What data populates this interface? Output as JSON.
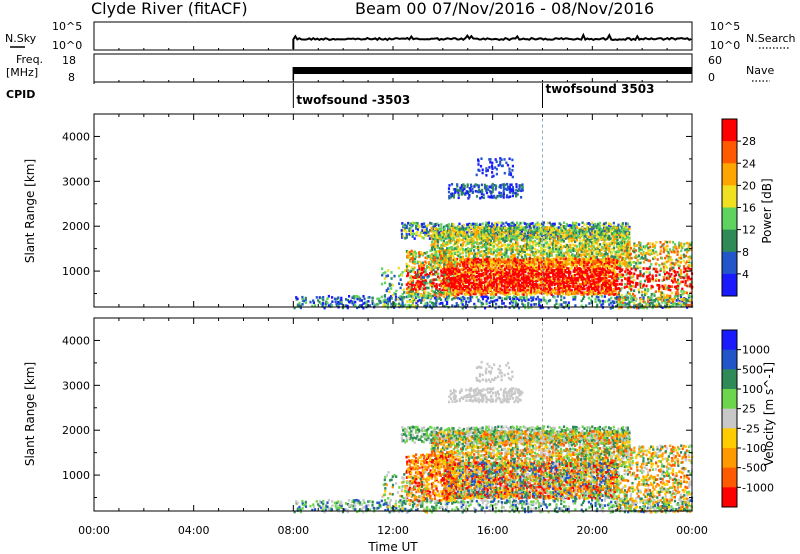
{
  "header": {
    "station": "Clyde River (fitACF)",
    "beam": "Beam 00",
    "dates": "07/Nov/2016 - 08/Nov/2016"
  },
  "colors": {
    "power": [
      "#1a1aff",
      "#2356c8",
      "#2e8b57",
      "#5fd35f",
      "#f0e020",
      "#ffa500",
      "#ff5a00",
      "#ff0000"
    ],
    "velocity": [
      "#ff0000",
      "#ff5a00",
      "#ff9900",
      "#ffcc00",
      "#c8c8c8",
      "#6bd64b",
      "#2e8b57",
      "#2256c8",
      "#1a1aff"
    ]
  },
  "chart_data": [
    {
      "type": "line",
      "panel": "sky-search",
      "left_label": "N.Sky",
      "right_label": "N.Search",
      "left_ticks": [
        "10^5",
        "10^0"
      ],
      "right_ticks": [
        "10^5",
        "10^0"
      ],
      "x_start_hour": 8,
      "x_end_hour": 24
    },
    {
      "type": "line",
      "panel": "freq-nave",
      "left_label_1": "Freq.",
      "left_label_2": "[MHz]",
      "right_label": "Nave",
      "left_ticks": [
        "18",
        "8"
      ],
      "right_ticks": [
        "60",
        "0"
      ],
      "x_start_hour": 8,
      "x_end_hour": 24
    },
    {
      "type": "table",
      "panel": "cpid",
      "label": "CPID",
      "segments": [
        {
          "start_hour": 8,
          "name": "twofsound -3503"
        },
        {
          "start_hour": 18,
          "name": "twofsound 3503"
        }
      ]
    },
    {
      "type": "heatmap",
      "panel": "power",
      "ylabel": "Slant Range [km]",
      "yticks": [
        1000,
        2000,
        3000,
        4000
      ],
      "ylim": [
        200,
        4500
      ],
      "colorbar_label": "Power [dB]",
      "colorbar_ticks": [
        "4",
        "8",
        "12",
        "16",
        "20",
        "24",
        "28"
      ]
    },
    {
      "type": "heatmap",
      "panel": "velocity",
      "ylabel": "Slant Range [km]",
      "yticks": [
        1000,
        2000,
        3000,
        4000
      ],
      "ylim": [
        200,
        4500
      ],
      "colorbar_label": "Velocity [m s^-1]",
      "colorbar_ticks": [
        "1000",
        "500",
        "100",
        "25",
        "-25",
        "-100",
        "-500",
        "-1000"
      ]
    }
  ],
  "x_axis": {
    "label": "Time UT",
    "ticks": [
      "00:00",
      "04:00",
      "08:00",
      "12:00",
      "16:00",
      "20:00",
      "00:00"
    ],
    "tick_hours": [
      0,
      4,
      8,
      12,
      16,
      20,
      24
    ],
    "xlim": [
      0,
      24
    ]
  }
}
